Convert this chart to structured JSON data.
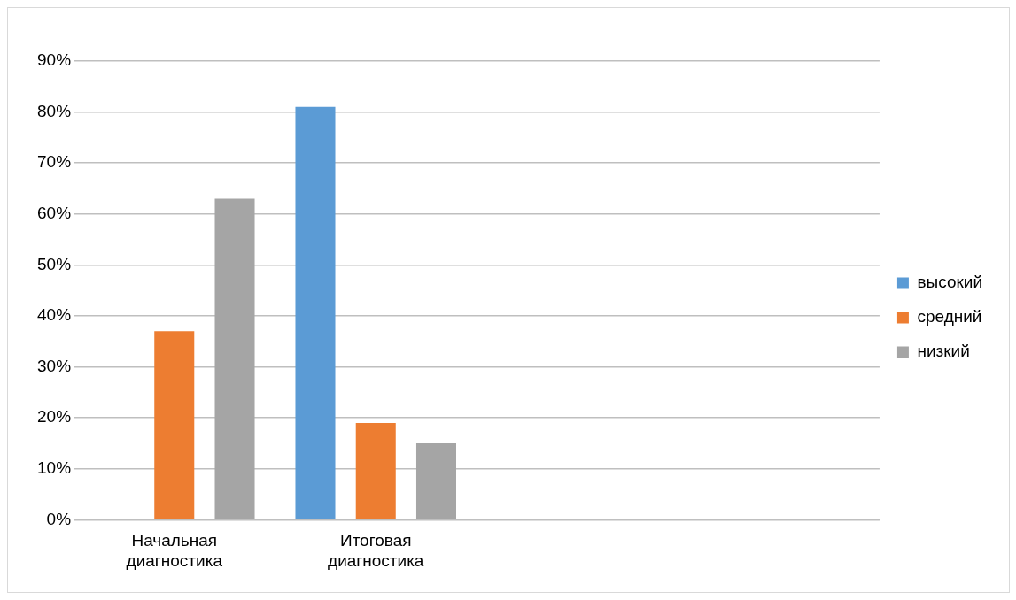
{
  "chart_data": {
    "type": "bar",
    "categories": [
      "Начальная диагностика",
      "Итоговая диагностика",
      null,
      null
    ],
    "series": [
      {
        "name": "высокий",
        "color": "#5b9bd5",
        "values": [
          0,
          81,
          null,
          null
        ]
      },
      {
        "name": "средний",
        "color": "#ed7d31",
        "values": [
          37,
          19,
          null,
          null
        ]
      },
      {
        "name": "низкий",
        "color": "#a5a5a5",
        "values": [
          63,
          15,
          null,
          null
        ]
      }
    ],
    "ylim": [
      0,
      90
    ],
    "yticks": [
      {
        "value": 0,
        "label": "0%"
      },
      {
        "value": 10,
        "label": "10%"
      },
      {
        "value": 20,
        "label": "20%"
      },
      {
        "value": 30,
        "label": "30%"
      },
      {
        "value": 40,
        "label": "40%"
      },
      {
        "value": 50,
        "label": "50%"
      },
      {
        "value": 60,
        "label": "60%"
      },
      {
        "value": 70,
        "label": "70%"
      },
      {
        "value": 80,
        "label": "80%"
      },
      {
        "value": 90,
        "label": "90%"
      }
    ],
    "grid": "y",
    "legend": "right"
  }
}
